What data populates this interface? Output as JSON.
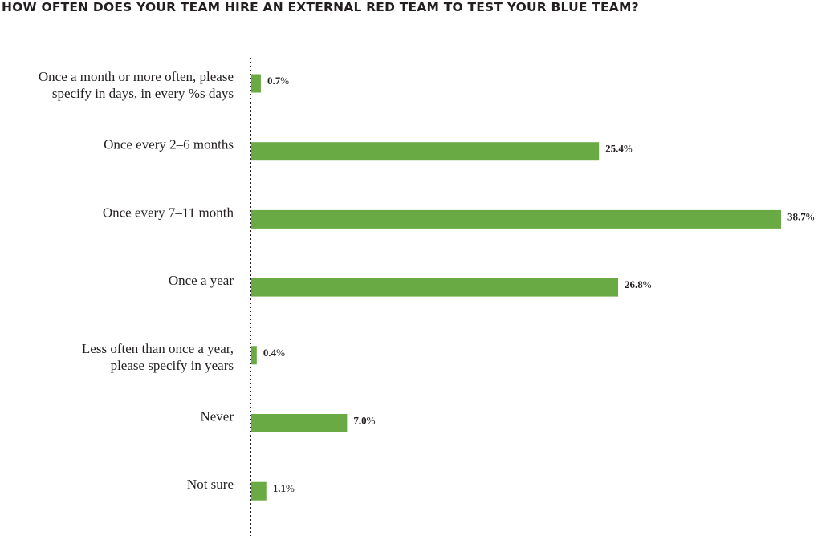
{
  "chart_data": {
    "type": "bar",
    "orientation": "horizontal",
    "title": "HOW OFTEN DOES YOUR TEAM HIRE AN EXTERNAL RED TEAM TO TEST YOUR BLUE TEAM?",
    "categories": [
      [
        "Once a month or more often, please",
        "specify in  days, in every %s days"
      ],
      [
        "Once every 2–6 months"
      ],
      [
        "Once every 7–11 month"
      ],
      [
        "Once a year"
      ],
      [
        "Less often than once a year,",
        "please specify in years"
      ],
      [
        "Never"
      ],
      [
        "Not sure"
      ]
    ],
    "values": [
      0.7,
      25.4,
      38.7,
      26.8,
      0.4,
      7.0,
      1.1
    ],
    "value_labels": [
      "0.7",
      "25.4",
      "38.7",
      "26.8",
      "0.4",
      "7.0",
      "1.1"
    ],
    "unit": "%",
    "xlim": [
      0,
      38.7
    ],
    "bar_color": "#6aaa45",
    "axis_line": "dotted",
    "grid": false,
    "legend": "none"
  }
}
